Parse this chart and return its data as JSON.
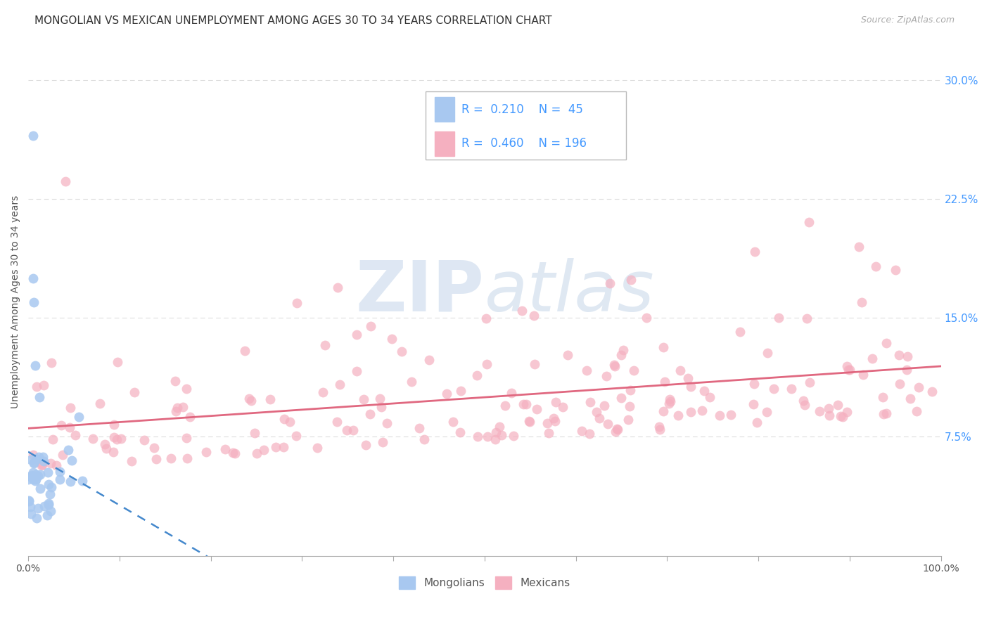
{
  "title": "MONGOLIAN VS MEXICAN UNEMPLOYMENT AMONG AGES 30 TO 34 YEARS CORRELATION CHART",
  "source": "Source: ZipAtlas.com",
  "ylabel": "Unemployment Among Ages 30 to 34 years",
  "xlim": [
    0,
    1.0
  ],
  "ylim": [
    0,
    0.32
  ],
  "y_ticks_right": [
    0.075,
    0.15,
    0.225,
    0.3
  ],
  "y_tick_labels_right": [
    "7.5%",
    "15.0%",
    "22.5%",
    "30.0%"
  ],
  "mongolian_R": 0.21,
  "mongolian_N": 45,
  "mexican_R": 0.46,
  "mexican_N": 196,
  "mongolian_color": "#a8c8f0",
  "mongolian_line_color": "#4488cc",
  "mexican_color": "#f5b0c0",
  "mexican_line_color": "#e06880",
  "background_color": "#ffffff",
  "grid_color": "#dddddd",
  "title_fontsize": 11,
  "source_fontsize": 9,
  "axis_label_fontsize": 10,
  "legend_color": "#4499ff",
  "seed": 42
}
